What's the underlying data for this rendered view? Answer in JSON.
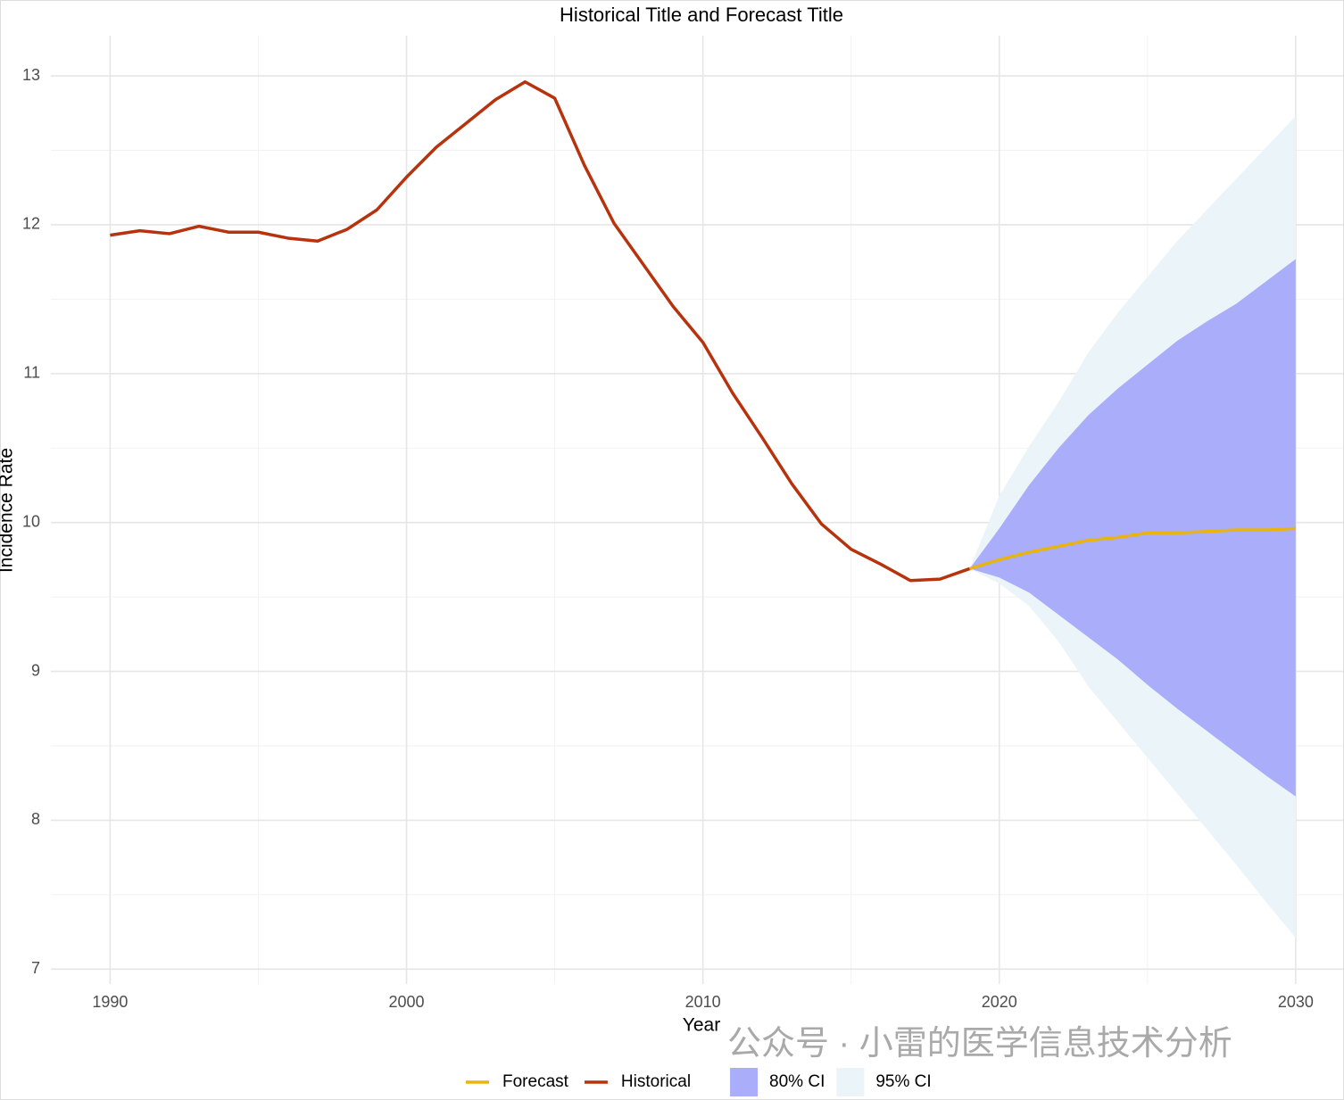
{
  "chart_data": {
    "type": "line",
    "title": "Historical Title and Forecast Title",
    "xlabel": "Year",
    "ylabel": "Incidence Rate",
    "xlim": [
      1988,
      2031.6
    ],
    "ylim": [
      6.9,
      13.27
    ],
    "xticks": [
      1990,
      2000,
      2010,
      2020,
      2030
    ],
    "yticks": [
      7,
      8,
      9,
      10,
      11,
      12,
      13
    ],
    "minor_xticks": [
      1995,
      2005,
      2015,
      2025
    ],
    "minor_yticks": [
      7.5,
      8.5,
      9.5,
      10.5,
      11.5,
      12.5
    ],
    "grid": true,
    "legend": "bottom",
    "bands": [
      {
        "name": "80% CI",
        "color": "#aaadf9",
        "x": [
          2019,
          2020,
          2021,
          2022,
          2023,
          2024,
          2025,
          2026,
          2027,
          2028,
          2029,
          2030
        ],
        "lower": [
          9.69,
          9.63,
          9.53,
          9.38,
          9.23,
          9.08,
          8.91,
          8.75,
          8.6,
          8.45,
          8.3,
          8.16
        ],
        "upper": [
          9.69,
          9.96,
          10.25,
          10.5,
          10.72,
          10.9,
          11.06,
          11.22,
          11.35,
          11.47,
          11.62,
          11.77
        ]
      },
      {
        "name": "95% CI",
        "color": "#ebf4f8",
        "x": [
          2019,
          2020,
          2021,
          2022,
          2023,
          2024,
          2025,
          2026,
          2027,
          2028,
          2029,
          2030
        ],
        "lower": [
          9.69,
          9.59,
          9.44,
          9.2,
          8.9,
          8.66,
          8.42,
          8.18,
          7.94,
          7.7,
          7.45,
          7.21
        ],
        "upper": [
          9.69,
          10.18,
          10.51,
          10.81,
          11.14,
          11.41,
          11.65,
          11.89,
          12.1,
          12.31,
          12.52,
          12.73
        ]
      }
    ],
    "series": [
      {
        "name": "Forecast",
        "color": "#e8b410",
        "x": [
          2019,
          2020,
          2021,
          2022,
          2023,
          2024,
          2025,
          2026,
          2027,
          2028,
          2029,
          2030
        ],
        "values": [
          9.69,
          9.75,
          9.8,
          9.84,
          9.88,
          9.9,
          9.93,
          9.93,
          9.94,
          9.95,
          9.95,
          9.96
        ]
      },
      {
        "name": "Historical",
        "color": "#b6330e",
        "x": [
          1990,
          1991,
          1992,
          1993,
          1994,
          1995,
          1996,
          1997,
          1998,
          1999,
          2000,
          2001,
          2002,
          2003,
          2004,
          2005,
          2006,
          2007,
          2008,
          2009,
          2010,
          2011,
          2012,
          2013,
          2014,
          2015,
          2016,
          2017,
          2018,
          2019
        ],
        "values": [
          11.93,
          11.96,
          11.94,
          11.99,
          11.95,
          11.95,
          11.91,
          11.89,
          11.97,
          12.1,
          12.32,
          12.52,
          12.68,
          12.84,
          12.96,
          12.85,
          12.4,
          12.01,
          11.73,
          11.45,
          11.21,
          10.87,
          10.57,
          10.26,
          9.99,
          9.82,
          9.72,
          9.61,
          9.62,
          9.69
        ]
      }
    ],
    "watermark": "公众号 · 小雷的医学信息技术分析"
  }
}
